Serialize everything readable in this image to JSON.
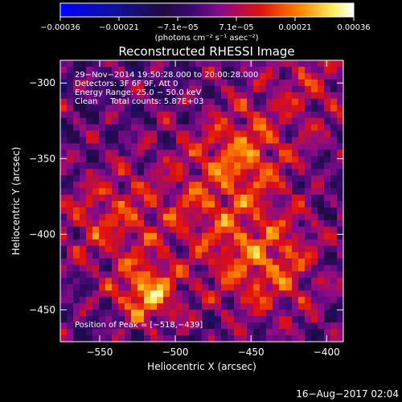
{
  "chart_data": {
    "type": "heatmap",
    "title": "Reconstructed RHESSI Image",
    "xlabel": "Heliocentric X (arcsec)",
    "ylabel": "Heliocentric Y (arcsec)",
    "xlim": [
      -576,
      -389
    ],
    "ylim": [
      -471,
      -285
    ],
    "xticks": [
      -550,
      -500,
      -450,
      -400
    ],
    "xtick_labels": [
      "−550",
      "−500",
      "−450",
      "−400"
    ],
    "yticks": [
      -300,
      -350,
      -400,
      -450
    ],
    "ytick_labels": [
      "−300",
      "−350",
      "−400",
      "−450"
    ],
    "colorbar": {
      "range": [
        -0.00036,
        0.00036
      ],
      "tick_labels": [
        "−0.00036",
        "−0.00021",
        "−7.1e−05",
        "7.1e−05",
        "0.00021",
        "0.00036"
      ],
      "unit_label": "(photons cm⁻² s⁻¹ asec⁻²)"
    },
    "annotations": [
      "29−Nov−2014 19:50:28.000 to 20:00:28.000",
      "Detectors: 3F 6F 9F, Att 0",
      "Energy Range: 25.0 − 50.0 keV",
      "Clean     Total counts: 5.87E+03",
      "Position of Peak = [−518,−439]"
    ],
    "peak_position": [
      -518,
      -439
    ],
    "grid_cells": [
      44,
      44
    ],
    "colors": {
      "background": "#000000",
      "foreground": "#ffffff"
    }
  },
  "footer_timestamp": "16−Aug−2017 02:04"
}
